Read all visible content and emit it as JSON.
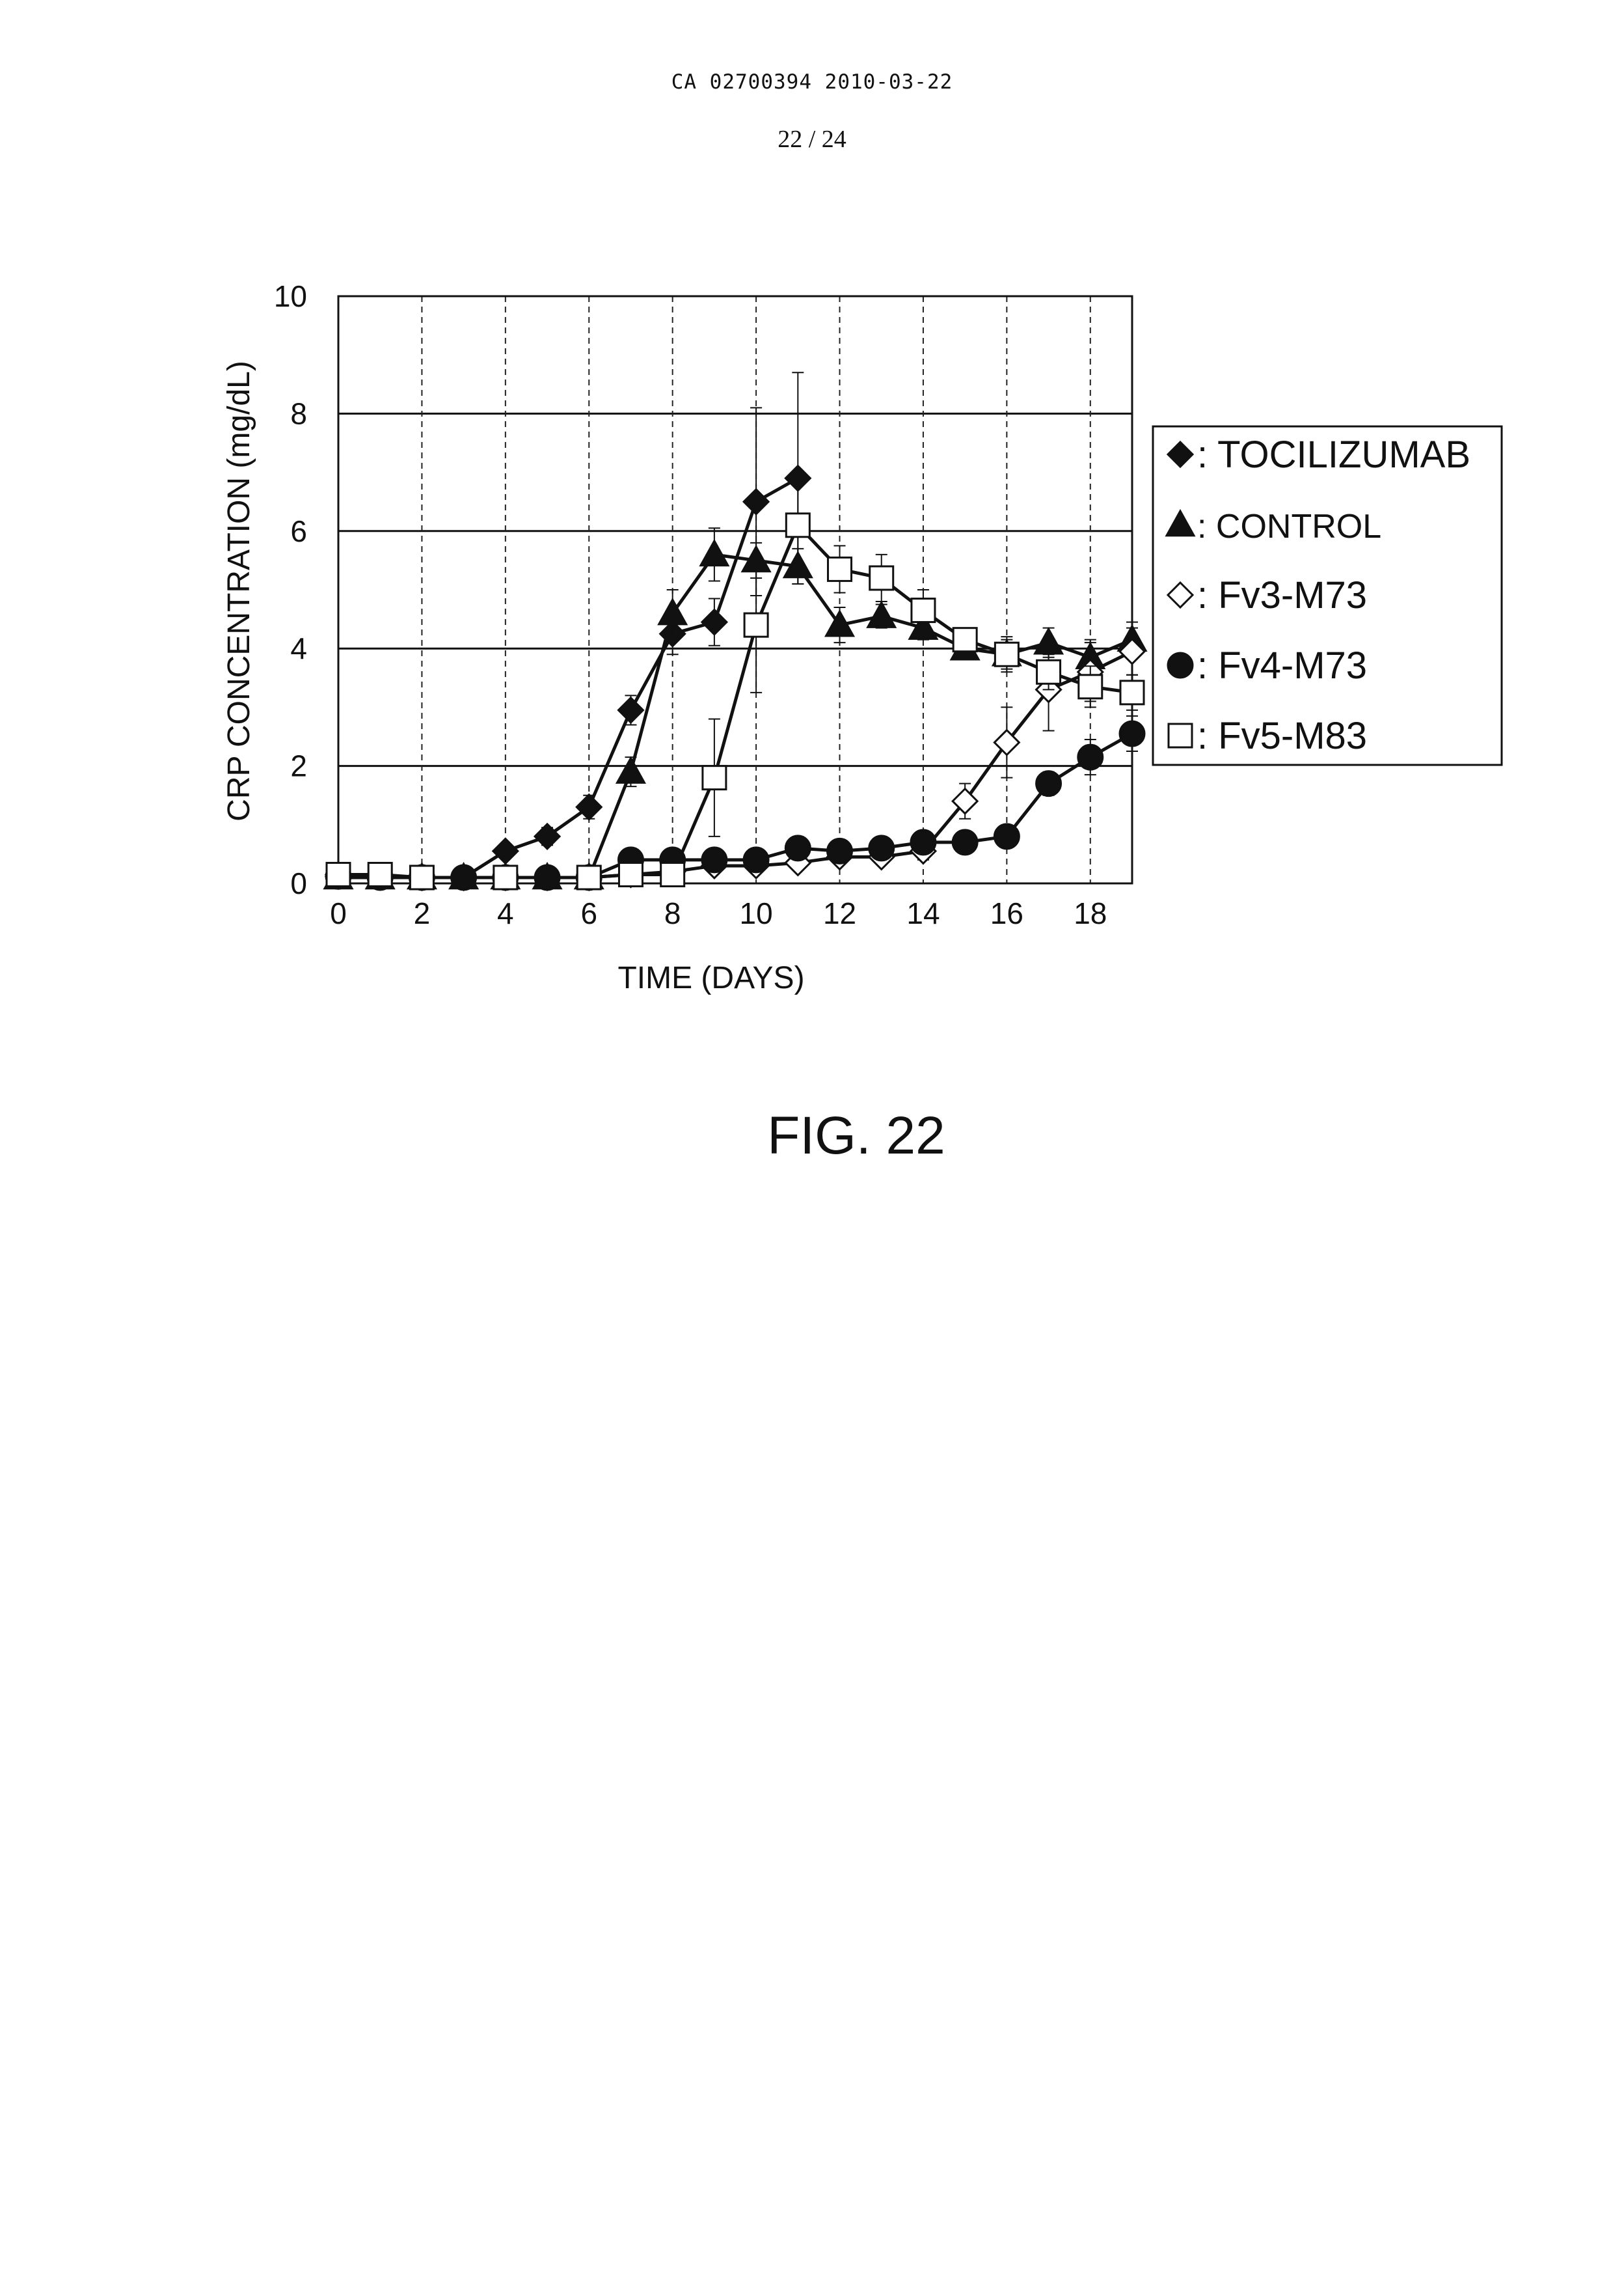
{
  "header": {
    "doc_id": "CA 02700394 2010-03-22",
    "page": "22 / 24"
  },
  "figure_label": "FIG. 22",
  "chart_data": {
    "type": "line",
    "title": "",
    "xlabel": "TIME (DAYS)",
    "ylabel": "CRP CONCENTRATION (mg/dL)",
    "xlim": [
      0,
      19
    ],
    "ylim": [
      0,
      10
    ],
    "xticks": [
      0,
      2,
      4,
      6,
      8,
      10,
      12,
      14,
      16,
      18
    ],
    "yticks": [
      0,
      2,
      4,
      6,
      8,
      10
    ],
    "grid": {
      "horizontal": "solid",
      "vertical": "dashed"
    },
    "legend_position": "right",
    "error_bars": true,
    "series": [
      {
        "name": ": TOCILIZUMAB",
        "marker": "diamond",
        "filled": true,
        "x": [
          0,
          1,
          2,
          3,
          4,
          5,
          6,
          7,
          8,
          9,
          10,
          11
        ],
        "y": [
          0.15,
          0.12,
          0.1,
          0.1,
          0.55,
          0.8,
          1.3,
          2.95,
          4.25,
          4.45,
          6.5,
          6.9
        ],
        "err": [
          0,
          0,
          0,
          0,
          0.1,
          0.15,
          0.2,
          0.25,
          0.35,
          0.4,
          1.6,
          1.8
        ]
      },
      {
        "name": ": CONTROL",
        "marker": "triangle",
        "filled": true,
        "x": [
          0,
          1,
          2,
          3,
          4,
          5,
          6,
          7,
          8,
          9,
          10,
          11,
          12,
          13,
          14,
          15,
          16,
          17,
          18,
          19
        ],
        "y": [
          0.1,
          0.1,
          0.1,
          0.1,
          0.1,
          0.1,
          0.1,
          1.9,
          4.6,
          5.6,
          5.5,
          5.4,
          4.4,
          4.55,
          4.35,
          4.0,
          3.9,
          4.1,
          3.85,
          4.15
        ],
        "err": [
          0,
          0,
          0,
          0,
          0,
          0,
          0,
          0.25,
          0.4,
          0.45,
          0.3,
          0.3,
          0.3,
          0.2,
          0.2,
          0.15,
          0.25,
          0.25,
          0.3,
          0.3
        ]
      },
      {
        "name": ": Fv3-M73",
        "marker": "diamond",
        "filled": false,
        "x": [
          0,
          1,
          2,
          3,
          4,
          5,
          6,
          7,
          8,
          9,
          10,
          11,
          12,
          13,
          14,
          15,
          16,
          17,
          18,
          19
        ],
        "y": [
          0.12,
          0.12,
          0.1,
          0.1,
          0.1,
          0.1,
          0.1,
          0.15,
          0.2,
          0.3,
          0.3,
          0.35,
          0.45,
          0.45,
          0.55,
          1.4,
          2.4,
          3.3,
          3.6,
          3.95
        ],
        "err": [
          0,
          0,
          0,
          0,
          0,
          0,
          0,
          0,
          0,
          0,
          0.1,
          0.1,
          0.1,
          0.1,
          0.15,
          0.3,
          0.6,
          0.7,
          0.5,
          0.4
        ]
      },
      {
        "name": ": Fv4-M73",
        "marker": "circle",
        "filled": true,
        "x": [
          0,
          1,
          2,
          3,
          4,
          5,
          6,
          7,
          8,
          9,
          10,
          11,
          12,
          13,
          14,
          15,
          16,
          17,
          18,
          19
        ],
        "y": [
          0.12,
          0.1,
          0.1,
          0.1,
          0.1,
          0.1,
          0.1,
          0.4,
          0.4,
          0.4,
          0.4,
          0.6,
          0.55,
          0.6,
          0.7,
          0.7,
          0.8,
          1.7,
          2.15,
          2.55
        ],
        "err": [
          0,
          0,
          0,
          0,
          0,
          0,
          0,
          0.05,
          0.05,
          0.05,
          0.05,
          0.1,
          0.1,
          0.1,
          0.1,
          0.1,
          0.1,
          0.2,
          0.3,
          0.3
        ]
      },
      {
        "name": ": Fv5-M83",
        "marker": "square",
        "filled": false,
        "x": [
          0,
          1,
          2,
          4,
          6,
          7,
          8,
          9,
          10,
          11,
          12,
          13,
          14,
          15,
          16,
          17,
          18,
          19
        ],
        "y": [
          0.15,
          0.15,
          0.1,
          0.1,
          0.1,
          0.15,
          0.15,
          1.8,
          4.4,
          6.1,
          5.35,
          5.2,
          4.65,
          4.15,
          3.9,
          3.6,
          3.35,
          3.25
        ],
        "err": [
          0,
          0,
          0,
          0,
          0,
          0,
          0,
          1.0,
          1.15,
          0.8,
          0.4,
          0.4,
          0.35,
          0.2,
          0.3,
          0.3,
          0.35,
          0.3
        ]
      }
    ]
  }
}
